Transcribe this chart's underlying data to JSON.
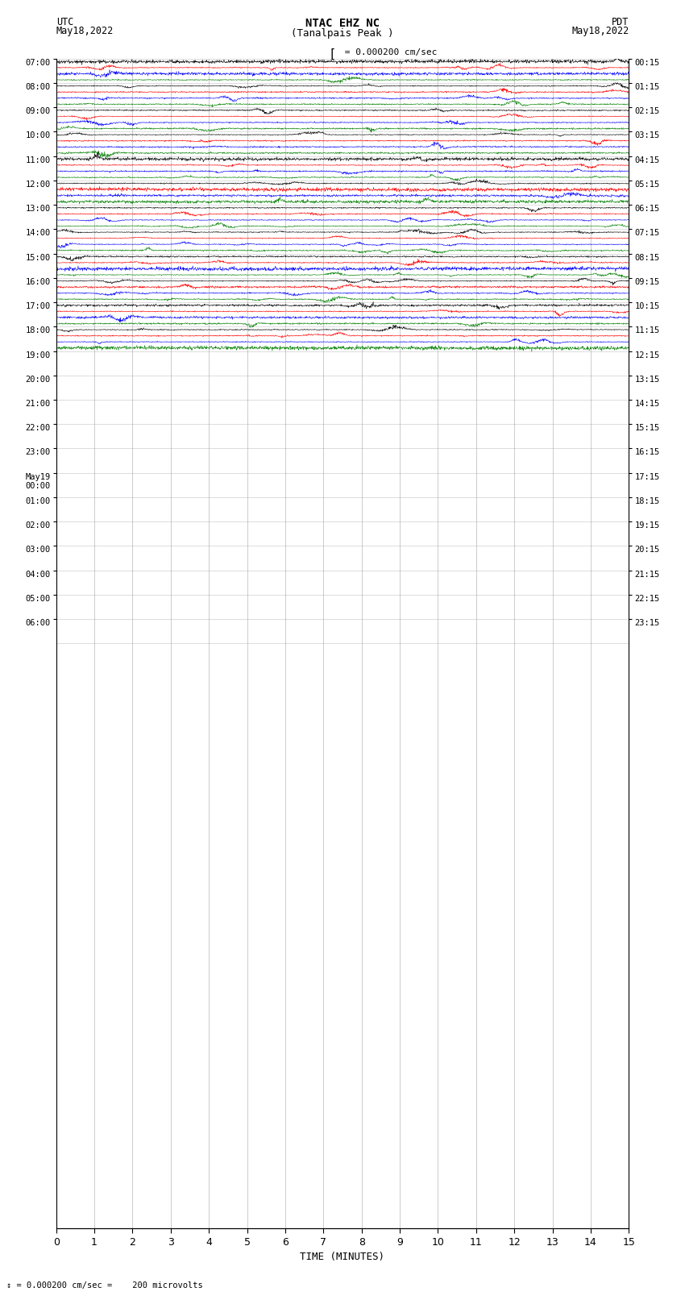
{
  "title_line1": "NTAC EHZ NC",
  "title_line2": "(Tanalpais Peak )",
  "scale_label": "= 0.000200 cm/sec",
  "utc_label": "UTC",
  "utc_date": "May18,2022",
  "pdt_label": "PDT",
  "pdt_date": "May18,2022",
  "xlabel": "TIME (MINUTES)",
  "footer": "= 0.000200 cm/sec =    200 microvolts",
  "xlim": [
    0,
    15
  ],
  "xticks": [
    0,
    1,
    2,
    3,
    4,
    5,
    6,
    7,
    8,
    9,
    10,
    11,
    12,
    13,
    14,
    15
  ],
  "trace_colors": [
    "black",
    "red",
    "blue",
    "green"
  ],
  "n_rows": 48,
  "traces_per_row": 4,
  "background_color": "white",
  "grid_color": "#999999",
  "figsize": [
    8.5,
    16.13
  ],
  "dpi": 100,
  "utc_row_labels": [
    "07:00",
    "08:00",
    "09:00",
    "10:00",
    "11:00",
    "12:00",
    "13:00",
    "14:00",
    "15:00",
    "16:00",
    "17:00",
    "18:00",
    "19:00",
    "20:00",
    "21:00",
    "22:00",
    "23:00",
    "May19\n00:00",
    "01:00",
    "02:00",
    "03:00",
    "04:00",
    "05:00",
    "06:00"
  ],
  "pdt_row_labels": [
    "00:15",
    "01:15",
    "02:15",
    "03:15",
    "04:15",
    "05:15",
    "06:15",
    "07:15",
    "08:15",
    "09:15",
    "10:15",
    "11:15",
    "12:15",
    "13:15",
    "14:15",
    "15:15",
    "16:15",
    "17:15",
    "18:15",
    "19:15",
    "20:15",
    "21:15",
    "22:15",
    "23:15"
  ],
  "n_hour_blocks": 24
}
